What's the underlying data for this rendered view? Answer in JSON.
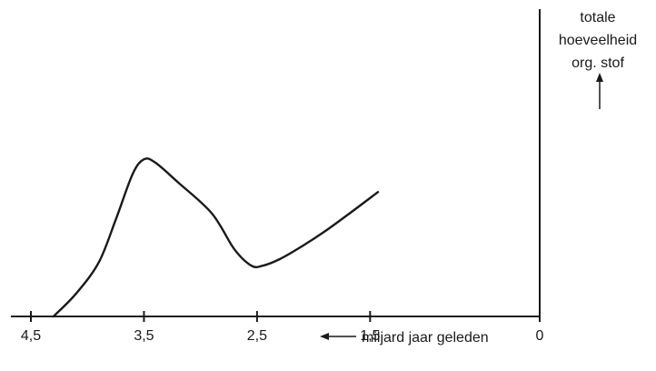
{
  "chart_data": {
    "type": "line",
    "xlabel": "miljard jaar geleden",
    "ylabel": [
      "totale",
      "hoeveelheid",
      "org. stof"
    ],
    "x_direction": "reversed",
    "xlim": [
      4.5,
      0
    ],
    "x_ticks": [
      4.5,
      3.5,
      2.5,
      1.5,
      0
    ],
    "x_tick_labels": [
      "4,5",
      "3,5",
      "2,5",
      "1,5",
      "0"
    ],
    "y_ticks": [],
    "y_scale": "relative",
    "ylim": [
      0,
      1
    ],
    "grid": false,
    "colors": {
      "line": "#1a1a1a",
      "axis": "#1a1a1a"
    },
    "series": [
      {
        "x": [
          4.3,
          4.1,
          3.9,
          3.75,
          3.6,
          3.5,
          3.4,
          3.2,
          2.9,
          2.7,
          2.55,
          2.45,
          2.3,
          2.1,
          1.9,
          1.7,
          1.43
        ],
        "y": [
          0.0,
          0.14,
          0.33,
          0.59,
          0.87,
          0.96,
          0.94,
          0.82,
          0.63,
          0.41,
          0.31,
          0.31,
          0.35,
          0.43,
          0.52,
          0.62,
          0.76
        ]
      }
    ]
  }
}
